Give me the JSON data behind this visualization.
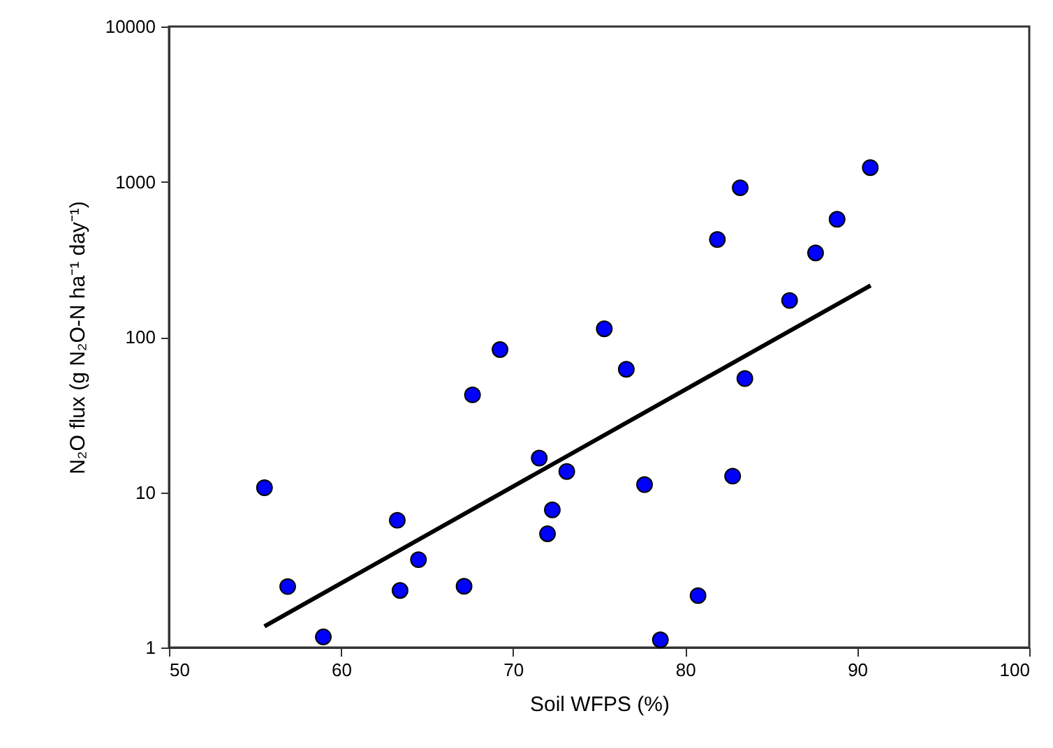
{
  "chart_data": {
    "type": "scatter",
    "xlabel": "Soil WFPS (%)",
    "ylabel": "N₂O flux (g N₂O-N ha⁻¹ day⁻¹)",
    "log": "y",
    "grid": false,
    "xlim": [
      50,
      100
    ],
    "xticks": [
      50,
      60,
      70,
      80,
      90,
      100
    ],
    "ylim": [
      1,
      10000
    ],
    "yticks": [
      1,
      10,
      100,
      1000,
      10000
    ],
    "series": [
      {
        "color": "#0000ff",
        "marker": "circle",
        "x": [
          55.55,
          56.9,
          58.97,
          63.27,
          63.43,
          64.5,
          67.15,
          67.64,
          69.24,
          71.52,
          72.0,
          72.28,
          73.12,
          75.3,
          76.58,
          77.64,
          78.56,
          80.75,
          81.87,
          82.76,
          83.2,
          83.47,
          86.07,
          87.58,
          88.83,
          90.76
        ],
        "values": [
          10.7,
          2.47,
          1.17,
          6.6,
          2.33,
          3.68,
          2.48,
          42.4,
          83,
          16.6,
          5.4,
          7.7,
          13.6,
          113,
          62,
          11.2,
          1.12,
          2.16,
          425,
          12.7,
          915,
          54,
          172,
          348,
          573,
          1233
        ]
      },
      {
        "type": "line",
        "color": "#000000",
        "x": [
          55.55,
          90.78
        ],
        "values": [
          1.37,
          215
        ]
      }
    ]
  }
}
